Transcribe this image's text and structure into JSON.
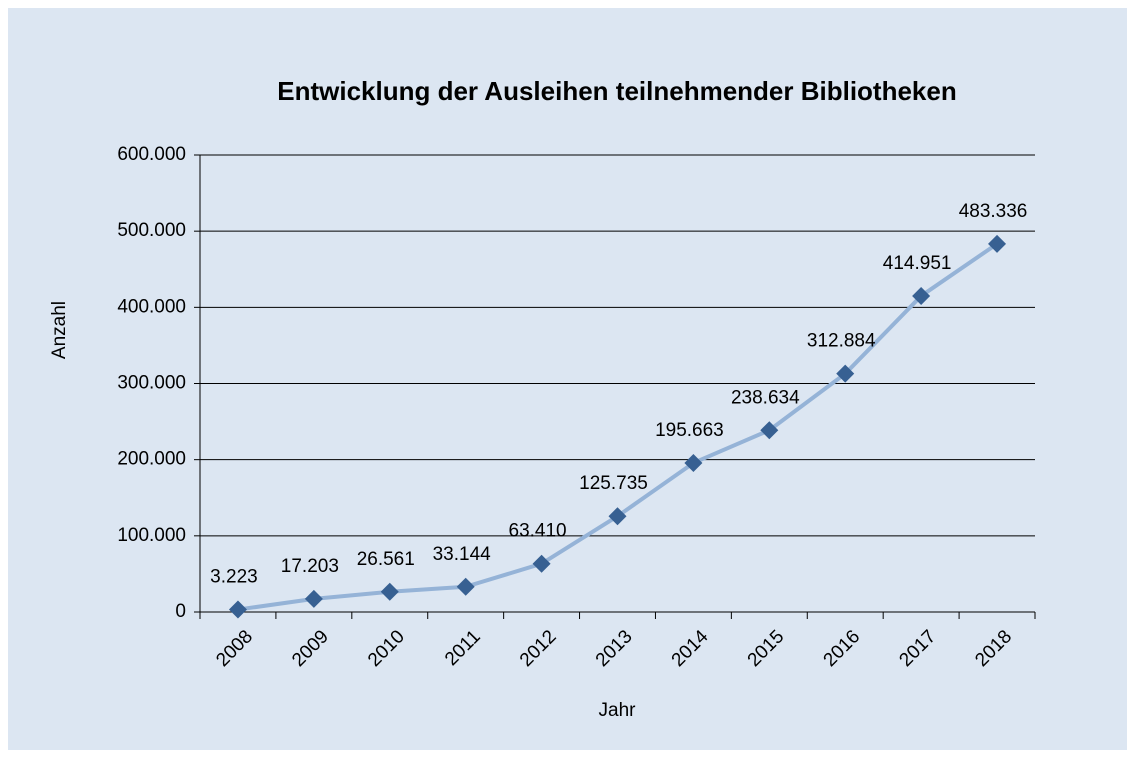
{
  "chart_data": {
    "type": "line",
    "title": "Entwicklung der Ausleihen teilnehmender Bibliotheken",
    "xlabel": "Jahr",
    "ylabel": "Anzahl",
    "categories": [
      "2008",
      "2009",
      "2010",
      "2011",
      "2012",
      "2013",
      "2014",
      "2015",
      "2016",
      "2017",
      "2018"
    ],
    "values": [
      3223,
      17203,
      26561,
      33144,
      63410,
      125735,
      195663,
      238634,
      312884,
      414951,
      483336
    ],
    "value_labels": [
      "3.223",
      "17.203",
      "26.561",
      "33.144",
      "63.410",
      "125.735",
      "195.663",
      "238.634",
      "312.884",
      "414.951",
      "483.336"
    ],
    "color": "#95b3d7",
    "marker_color": "#376092",
    "ylim": [
      0,
      600000
    ],
    "yticks": [
      0,
      {
        "value": 100000,
        "label": "100.000"
      },
      {
        "value": 200000,
        "label": "200.000"
      },
      {
        "value": 300000,
        "label": "300.000"
      },
      {
        "value": 400000,
        "label": "400.000"
      },
      {
        "value": 500000,
        "label": "500.000"
      },
      {
        "value": 600000,
        "label": "600.000"
      }
    ],
    "grid": true
  }
}
